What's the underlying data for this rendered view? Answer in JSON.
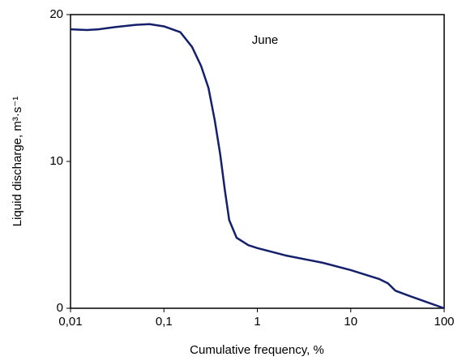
{
  "chart_data": {
    "type": "line",
    "annotation": "June",
    "x_label": "Cumulative frequency, %",
    "y_label": "Liquid discharge, m³·s⁻¹",
    "xscale": "log",
    "grid": false,
    "x": [
      0.01,
      0.015,
      0.02,
      0.03,
      0.05,
      0.07,
      0.1,
      0.15,
      0.2,
      0.25,
      0.3,
      0.35,
      0.4,
      0.45,
      0.5,
      0.6,
      0.8,
      1,
      2,
      5,
      10,
      20,
      25,
      30,
      40,
      60,
      100
    ],
    "series": [
      {
        "color": "#14206b",
        "values": [
          19.0,
          18.95,
          19.0,
          19.15,
          19.3,
          19.35,
          19.2,
          18.8,
          17.8,
          16.5,
          15.0,
          12.8,
          10.5,
          8.0,
          6.0,
          4.8,
          4.3,
          4.1,
          3.6,
          3.1,
          2.6,
          2.0,
          1.7,
          1.2,
          0.9,
          0.5,
          0.0
        ]
      }
    ],
    "xlim": [
      0.01,
      100
    ],
    "xticks": [
      {
        "value": 0.01,
        "label": "0,01"
      },
      {
        "value": 0.1,
        "label": "0,1"
      },
      1,
      10,
      100
    ],
    "ylim": [
      0,
      20
    ],
    "yticks": [
      0,
      10,
      20
    ]
  }
}
